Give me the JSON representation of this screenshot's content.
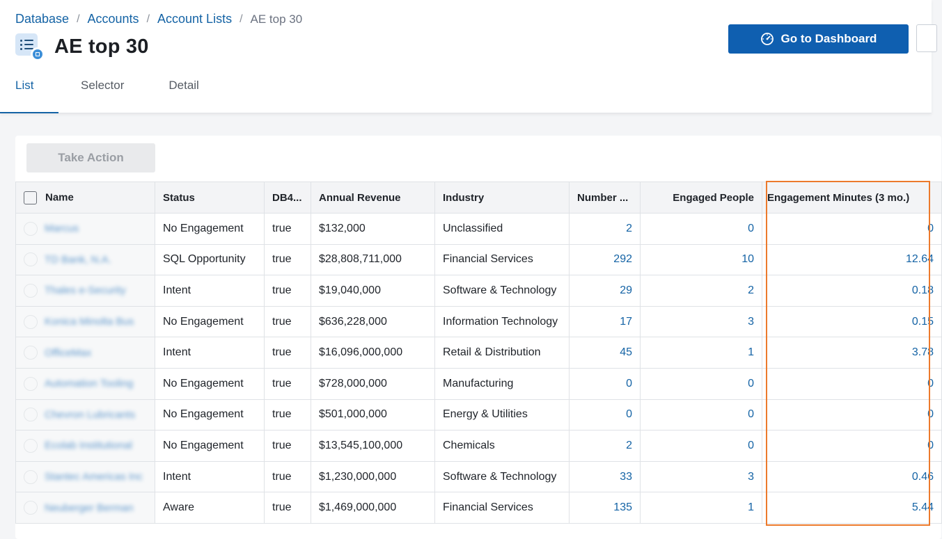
{
  "breadcrumb": {
    "items": [
      "Database",
      "Accounts",
      "Account Lists"
    ],
    "separator": "/",
    "current": "AE top 30"
  },
  "page": {
    "title": "AE top 30",
    "dashboard_button": "Go to Dashboard"
  },
  "tabs": [
    {
      "label": "List",
      "active": true
    },
    {
      "label": "Selector",
      "active": false
    },
    {
      "label": "Detail",
      "active": false
    }
  ],
  "toolbar": {
    "take_action": "Take Action"
  },
  "table": {
    "columns": [
      "Name",
      "Status",
      "DB4...",
      "Annual Revenue",
      "Industry",
      "Number ...",
      "Engaged People",
      "Engagement Minutes (3 mo.)"
    ],
    "rows": [
      {
        "name": "Marcus",
        "status": "No Engagement",
        "db4": "true",
        "revenue": "$132,000",
        "industry": "Unclassified",
        "number": "2",
        "engaged": "0",
        "minutes": "0"
      },
      {
        "name": "TD Bank, N.A.",
        "status": "SQL Opportunity",
        "db4": "true",
        "revenue": "$28,808,711,000",
        "industry": "Financial Services",
        "number": "292",
        "engaged": "10",
        "minutes": "12.64"
      },
      {
        "name": "Thales e-Security",
        "status": "Intent",
        "db4": "true",
        "revenue": "$19,040,000",
        "industry": "Software & Technology",
        "number": "29",
        "engaged": "2",
        "minutes": "0.18"
      },
      {
        "name": "Konica Minolta Bus",
        "status": "No Engagement",
        "db4": "true",
        "revenue": "$636,228,000",
        "industry": "Information Technology",
        "number": "17",
        "engaged": "3",
        "minutes": "0.15"
      },
      {
        "name": "OfficeMax",
        "status": "Intent",
        "db4": "true",
        "revenue": "$16,096,000,000",
        "industry": "Retail & Distribution",
        "number": "45",
        "engaged": "1",
        "minutes": "3.78"
      },
      {
        "name": "Automation Tooling",
        "status": "No Engagement",
        "db4": "true",
        "revenue": "$728,000,000",
        "industry": "Manufacturing",
        "number": "0",
        "engaged": "0",
        "minutes": "0"
      },
      {
        "name": "Chevron Lubricants",
        "status": "No Engagement",
        "db4": "true",
        "revenue": "$501,000,000",
        "industry": "Energy & Utilities",
        "number": "0",
        "engaged": "0",
        "minutes": "0"
      },
      {
        "name": "Ecolab Institutional",
        "status": "No Engagement",
        "db4": "true",
        "revenue": "$13,545,100,000",
        "industry": "Chemicals",
        "number": "2",
        "engaged": "0",
        "minutes": "0"
      },
      {
        "name": "Stantec Americas Inc",
        "status": "Intent",
        "db4": "true",
        "revenue": "$1,230,000,000",
        "industry": "Software & Technology",
        "number": "33",
        "engaged": "3",
        "minutes": "0.46"
      },
      {
        "name": "Neuberger Berman",
        "status": "Aware",
        "db4": "true",
        "revenue": "$1,469,000,000",
        "industry": "Financial Services",
        "number": "135",
        "engaged": "1",
        "minutes": "5.44"
      }
    ]
  },
  "colors": {
    "accent": "#1463a5",
    "primary_button": "#0f5fb0",
    "highlight": "#ec7a2c"
  }
}
